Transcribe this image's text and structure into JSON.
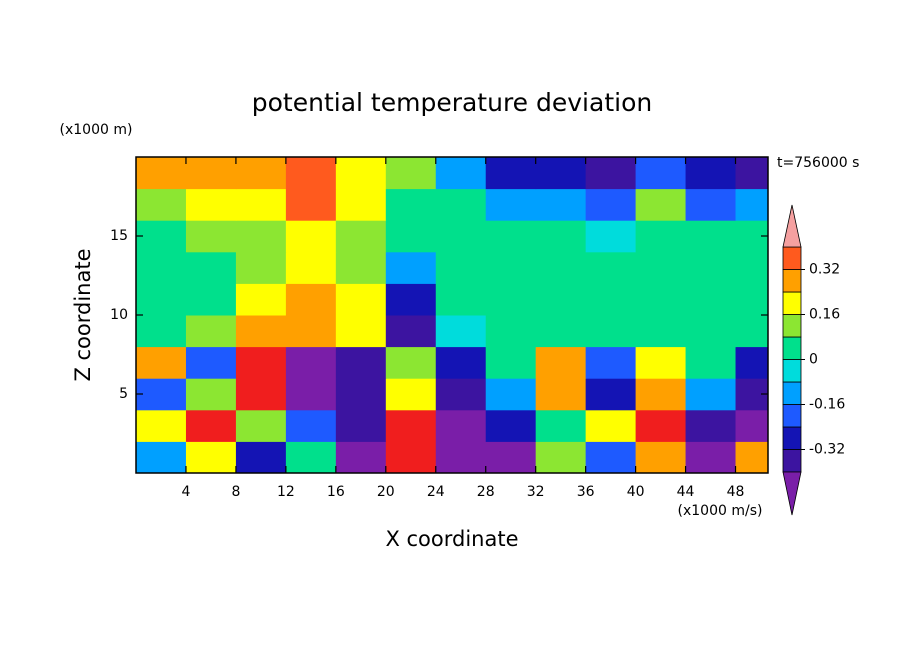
{
  "chart_data": {
    "type": "contour",
    "title": "potential temperature deviation",
    "x_label": "X coordinate",
    "y_label": "Z coordinate",
    "x_unit": "(x1000 m/s)",
    "y_unit": "(x1000 m)",
    "time_label": "t=756000 s",
    "xlim": [
      0,
      50.6
    ],
    "ylim": [
      0,
      20
    ],
    "xticks": [
      4,
      8,
      12,
      16,
      20,
      24,
      28,
      32,
      36,
      40,
      44,
      48
    ],
    "yticks": [
      5,
      10,
      15
    ],
    "x": [
      2,
      6,
      10,
      14,
      18,
      22,
      26,
      30,
      34,
      38,
      42,
      46,
      50
    ],
    "y": [
      1,
      3,
      5,
      7,
      9,
      11,
      13,
      15,
      17,
      19
    ],
    "z": [
      [
        -0.1,
        0.2,
        -0.3,
        0.0,
        -0.45,
        0.45,
        -0.45,
        -0.45,
        0.1,
        -0.2,
        0.3,
        -0.45,
        0.3
      ],
      [
        0.2,
        0.4,
        0.1,
        -0.2,
        -0.4,
        0.45,
        -0.45,
        -0.3,
        0.0,
        0.2,
        0.45,
        -0.4,
        -0.45
      ],
      [
        -0.2,
        0.1,
        0.5,
        -0.45,
        -0.35,
        0.2,
        -0.35,
        -0.1,
        0.3,
        -0.3,
        0.3,
        -0.1,
        -0.4
      ],
      [
        0.3,
        -0.2,
        0.5,
        -0.45,
        -0.4,
        0.1,
        -0.3,
        0.0,
        0.3,
        -0.2,
        0.2,
        0.0,
        -0.3
      ],
      [
        0.05,
        0.1,
        0.25,
        0.3,
        0.2,
        -0.35,
        -0.05,
        0.05,
        0.05,
        0.05,
        0.05,
        0.05,
        0.05
      ],
      [
        0.05,
        0.05,
        0.18,
        0.25,
        0.18,
        -0.3,
        0.0,
        0.05,
        0.05,
        0.05,
        0.02,
        0.05,
        0.05
      ],
      [
        0.05,
        0.05,
        0.12,
        0.2,
        0.12,
        -0.1,
        0.02,
        0.05,
        0.05,
        0.05,
        0.0,
        0.05,
        0.05
      ],
      [
        0.05,
        0.1,
        0.15,
        0.2,
        0.1,
        0.0,
        0.05,
        0.05,
        0.05,
        -0.05,
        0.0,
        0.05,
        0.05
      ],
      [
        0.15,
        0.18,
        0.2,
        0.33,
        0.18,
        0.05,
        0.0,
        -0.15,
        -0.1,
        -0.2,
        0.1,
        -0.2,
        -0.1
      ],
      [
        0.25,
        0.28,
        0.25,
        0.35,
        0.2,
        0.1,
        -0.1,
        -0.3,
        -0.3,
        -0.35,
        -0.2,
        -0.3,
        -0.35
      ]
    ],
    "levels": [
      -0.4,
      -0.32,
      -0.24,
      -0.16,
      -0.08,
      0,
      0.08,
      0.16,
      0.24,
      0.32,
      0.4
    ],
    "colorbar_ticks": [
      -0.32,
      -0.16,
      0,
      0.16,
      0.32
    ],
    "colors": [
      "#7a1ea8",
      "#3c14a0",
      "#1414b4",
      "#1e5aff",
      "#00a0ff",
      "#00dcdc",
      "#00e08c",
      "#8ce632",
      "#ffff00",
      "#ffa000",
      "#ff5a1e",
      "#f01e1e",
      "#f5a0a0"
    ]
  }
}
